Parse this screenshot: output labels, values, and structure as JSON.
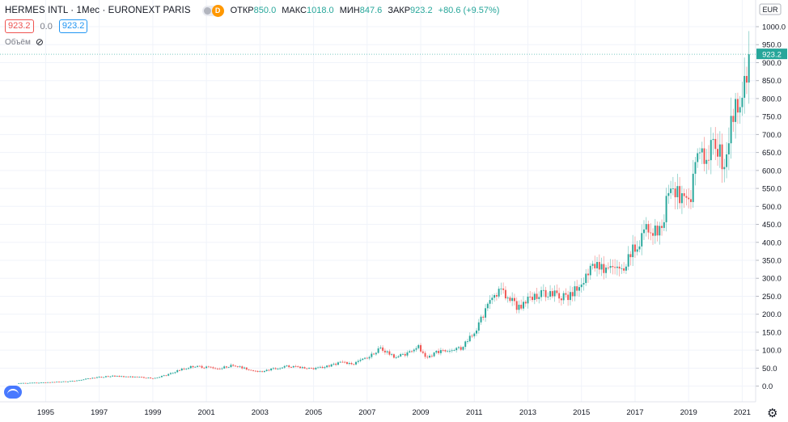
{
  "header": {
    "title": "HERMES INTL · 1Мес · EURONEXT PARIS",
    "exchange_badge": "D",
    "ohlc": {
      "open_label": "ОТКР",
      "open": "850.0",
      "high_label": "МАКС",
      "high": "1018.0",
      "low_label": "МИН",
      "low": "847.6",
      "close_label": "ЗАКР",
      "close": "923.2",
      "change": "+80.6 (+9.57%)"
    }
  },
  "price_row": {
    "left_value": "923.2",
    "spread": "0.0",
    "right_value": "923.2"
  },
  "volume_label": "Объём",
  "icons": {
    "visibility": "eye-slash-icon",
    "logo": "tradingview-logo-icon",
    "settings": "gear-icon"
  },
  "colors": {
    "up": "#26a69a",
    "down": "#ef5350",
    "grid": "#f0f3fa",
    "last_price_tag": "#26a69a"
  },
  "chart_data": {
    "type": "candlestick",
    "currency": "EUR",
    "last_price": "923.2",
    "y_ticks": [
      "1000.0",
      "950.0",
      "900.0",
      "850.0",
      "800.0",
      "750.0",
      "700.0",
      "650.0",
      "600.0",
      "550.0",
      "500.0",
      "450.0",
      "400.0",
      "350.0",
      "300.0",
      "250.0",
      "200.0",
      "150.0",
      "100.0",
      "50.0",
      "0.0"
    ],
    "ylim": [
      -40,
      1040
    ],
    "x_ticks": [
      "1995",
      "1997",
      "1999",
      "2001",
      "2003",
      "2005",
      "2007",
      "2009",
      "2011",
      "2013",
      "2015",
      "2017",
      "2019",
      "2021"
    ],
    "xlim": [
      1993.9,
      2021.35
    ],
    "grid": true,
    "series_points": [
      [
        1994.0,
        8
      ],
      [
        1994.5,
        9
      ],
      [
        1995.0,
        10
      ],
      [
        1995.5,
        12
      ],
      [
        1996.0,
        14
      ],
      [
        1996.5,
        20
      ],
      [
        1997.0,
        25
      ],
      [
        1997.5,
        28
      ],
      [
        1998.0,
        26
      ],
      [
        1998.5,
        25
      ],
      [
        1999.0,
        22
      ],
      [
        1999.5,
        30
      ],
      [
        2000.0,
        45
      ],
      [
        2000.5,
        55
      ],
      [
        2001.0,
        52
      ],
      [
        2001.5,
        50
      ],
      [
        2002.0,
        58
      ],
      [
        2002.5,
        48
      ],
      [
        2003.0,
        40
      ],
      [
        2003.5,
        48
      ],
      [
        2004.0,
        55
      ],
      [
        2004.5,
        52
      ],
      [
        2005.0,
        48
      ],
      [
        2005.5,
        55
      ],
      [
        2006.0,
        65
      ],
      [
        2006.5,
        62
      ],
      [
        2007.0,
        80
      ],
      [
        2007.5,
        105
      ],
      [
        2008.0,
        82
      ],
      [
        2008.5,
        90
      ],
      [
        2008.9,
        112
      ],
      [
        2009.2,
        75
      ],
      [
        2009.6,
        95
      ],
      [
        2010.0,
        100
      ],
      [
        2010.5,
        105
      ],
      [
        2011.0,
        150
      ],
      [
        2011.5,
        220
      ],
      [
        2011.9,
        265
      ],
      [
        2012.3,
        250
      ],
      [
        2012.6,
        215
      ],
      [
        2013.0,
        240
      ],
      [
        2013.5,
        260
      ],
      [
        2014.0,
        255
      ],
      [
        2014.5,
        245
      ],
      [
        2015.0,
        290
      ],
      [
        2015.5,
        340
      ],
      [
        2016.0,
        320
      ],
      [
        2016.5,
        320
      ],
      [
        2017.0,
        390
      ],
      [
        2017.5,
        440
      ],
      [
        2018.0,
        430
      ],
      [
        2018.3,
        580
      ],
      [
        2018.7,
        520
      ],
      [
        2019.0,
        500
      ],
      [
        2019.3,
        620
      ],
      [
        2019.7,
        650
      ],
      [
        2020.0,
        680
      ],
      [
        2020.3,
        620
      ],
      [
        2020.6,
        740
      ],
      [
        2020.9,
        800
      ],
      [
        2021.1,
        850
      ],
      [
        2021.25,
        923.2
      ]
    ]
  }
}
